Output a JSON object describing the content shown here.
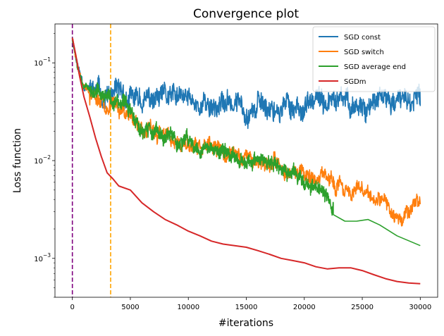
{
  "chart_data": {
    "type": "line",
    "title": "Convergence plot",
    "xlabel": "#iterations",
    "ylabel": "Loss function",
    "xscale": "linear",
    "yscale": "log",
    "xlim": [
      -1500,
      31500
    ],
    "ylim": [
      0.0004,
      0.25
    ],
    "xticks": [
      0,
      5000,
      10000,
      15000,
      20000,
      25000,
      30000
    ],
    "xtick_labels": [
      "0",
      "5000",
      "10000",
      "15000",
      "20000",
      "25000",
      "30000"
    ],
    "yticks": [
      0.001,
      0.01,
      0.1
    ],
    "ytick_labels": [
      "10",
      "10",
      "10"
    ],
    "ytick_exponents": [
      "−3",
      "−2",
      "−1"
    ],
    "grid": false,
    "legend_position": "top-right",
    "vlines": [
      {
        "x": 0,
        "color": "#800080",
        "style": "dashed"
      },
      {
        "x": 3300,
        "color": "#ffa500",
        "style": "dashed"
      }
    ],
    "series": [
      {
        "name": "SGD const",
        "color": "#1f77b4",
        "noisy": true,
        "noise_amp": 0.32,
        "seed": 11,
        "x": [
          0,
          500,
          1000,
          2000,
          3000,
          5000,
          7000,
          8000,
          10000,
          12000,
          15000,
          18000,
          20000,
          22000,
          25000,
          28000,
          30000
        ],
        "y": [
          0.18,
          0.09,
          0.06,
          0.05,
          0.045,
          0.04,
          0.04,
          0.042,
          0.04,
          0.038,
          0.037,
          0.036,
          0.036,
          0.038,
          0.038,
          0.04,
          0.04
        ]
      },
      {
        "name": "SGD switch",
        "color": "#ff7f0e",
        "noisy": true,
        "noise_amp": 0.22,
        "seed": 23,
        "x": [
          0,
          500,
          1000,
          2000,
          3300,
          5000,
          6000,
          8000,
          10000,
          12000,
          15000,
          18000,
          20000,
          22000,
          25000,
          27000,
          28000,
          30000
        ],
        "y": [
          0.18,
          0.09,
          0.06,
          0.045,
          0.04,
          0.03,
          0.022,
          0.017,
          0.014,
          0.0125,
          0.011,
          0.0085,
          0.0075,
          0.006,
          0.0045,
          0.0033,
          0.0028,
          0.0038
        ]
      },
      {
        "name": "SGD average end",
        "color": "#2ca02c",
        "noisy": true,
        "noise_amp": 0.22,
        "seed": 37,
        "x": [
          0,
          500,
          1000,
          2000,
          3300,
          5000,
          6000,
          8000,
          10000,
          12000,
          15000,
          18000,
          20000,
          21500,
          22500
        ],
        "y": [
          0.18,
          0.09,
          0.06,
          0.05,
          0.04,
          0.035,
          0.022,
          0.017,
          0.015,
          0.013,
          0.0105,
          0.008,
          0.0065,
          0.005,
          0.0032
        ],
        "smooth_x": [
          22500,
          23500,
          24500,
          25500,
          26500,
          28000,
          30000
        ],
        "smooth_y": [
          0.0028,
          0.0024,
          0.0024,
          0.0025,
          0.0022,
          0.0017,
          0.00135
        ]
      },
      {
        "name": "SGDm",
        "color": "#d62728",
        "noisy": false,
        "x": [
          0,
          300,
          600,
          1000,
          1500,
          2000,
          2500,
          3000,
          3500,
          4000,
          5000,
          6000,
          7000,
          8000,
          9000,
          10000,
          11000,
          12000,
          13000,
          14000,
          15000,
          16000,
          17000,
          18000,
          19000,
          20000,
          21000,
          22000,
          23000,
          24000,
          25000,
          26000,
          27000,
          28000,
          29000,
          30000
        ],
        "y": [
          0.18,
          0.12,
          0.075,
          0.045,
          0.028,
          0.017,
          0.011,
          0.0075,
          0.0065,
          0.0055,
          0.005,
          0.0037,
          0.003,
          0.0025,
          0.0022,
          0.0019,
          0.0017,
          0.0015,
          0.0014,
          0.00135,
          0.0013,
          0.0012,
          0.0011,
          0.001,
          0.00095,
          0.0009,
          0.00082,
          0.00078,
          0.0008,
          0.0008,
          0.00075,
          0.00068,
          0.00062,
          0.00058,
          0.00056,
          0.00055
        ]
      }
    ]
  }
}
